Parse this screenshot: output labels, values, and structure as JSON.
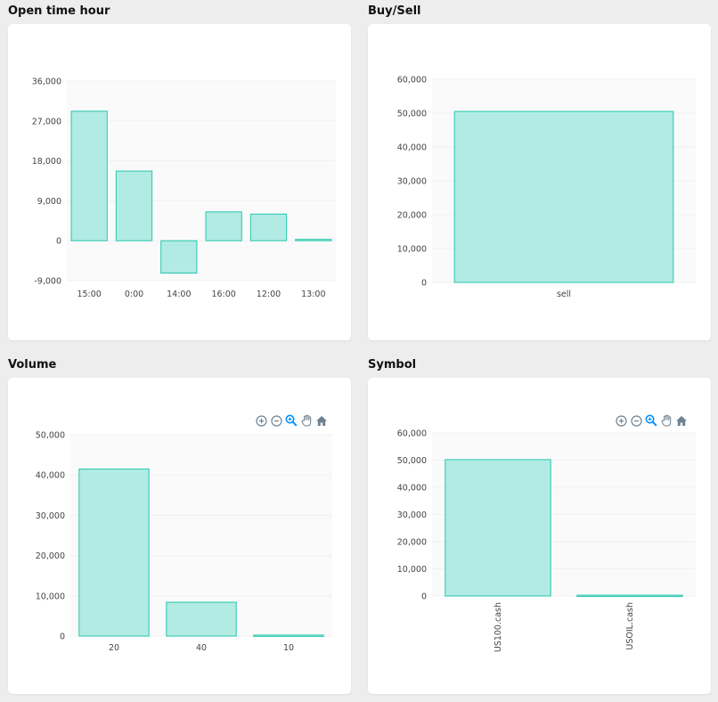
{
  "panels": [
    {
      "title": "Open time hour"
    },
    {
      "title": "Buy/Sell"
    },
    {
      "title": "Volume"
    },
    {
      "title": "Symbol"
    }
  ],
  "colors": {
    "bar_fill": "#b1ebe3",
    "bar_stroke": "#26c7ad",
    "grid": "#f0f0f0",
    "plot_bg": "#fafafa",
    "tick_text": "#444444",
    "toolbar_icon": "#6e8192",
    "toolbar_active": "#008ffb"
  },
  "toolbar_icons": [
    "zoom-in-icon",
    "zoom-out-icon",
    "zoom-selection-icon",
    "pan-hand-icon",
    "reset-home-icon"
  ],
  "chart_data": [
    {
      "type": "bar",
      "title": "Open time hour",
      "categories": [
        "15:00",
        "0:00",
        "14:00",
        "16:00",
        "12:00",
        "13:00"
      ],
      "values": [
        29200,
        15700,
        -7300,
        6500,
        6000,
        300
      ],
      "ylim": [
        -9000,
        36000
      ],
      "yticks": [
        36000,
        27000,
        18000,
        9000,
        0,
        -9000
      ],
      "ytick_labels": [
        "36,000",
        "27,000",
        "18,000",
        "9,000",
        "0",
        "-9,000"
      ],
      "grid": true
    },
    {
      "type": "bar",
      "title": "Buy/Sell",
      "categories": [
        "sell"
      ],
      "values": [
        50500
      ],
      "ylim": [
        0,
        60000
      ],
      "yticks": [
        60000,
        50000,
        40000,
        30000,
        20000,
        10000,
        0
      ],
      "ytick_labels": [
        "60,000",
        "50,000",
        "40,000",
        "30,000",
        "20,000",
        "10,000",
        "0"
      ],
      "grid": true
    },
    {
      "type": "bar",
      "title": "Volume",
      "categories": [
        "20",
        "40",
        "10"
      ],
      "values": [
        41500,
        8400,
        250
      ],
      "ylim": [
        0,
        50000
      ],
      "yticks": [
        50000,
        40000,
        30000,
        20000,
        10000,
        0
      ],
      "ytick_labels": [
        "50,000",
        "40,000",
        "30,000",
        "20,000",
        "10,000",
        "0"
      ],
      "grid": true
    },
    {
      "type": "bar",
      "title": "Symbol",
      "categories": [
        "US100.cash",
        "USOIL.cash"
      ],
      "values": [
        50200,
        300
      ],
      "ylim": [
        0,
        60000
      ],
      "yticks": [
        60000,
        50000,
        40000,
        30000,
        20000,
        10000,
        0
      ],
      "ytick_labels": [
        "60,000",
        "50,000",
        "40,000",
        "30,000",
        "20,000",
        "10,000",
        "0"
      ],
      "grid": true,
      "xlabel_rotation": "vertical"
    }
  ]
}
